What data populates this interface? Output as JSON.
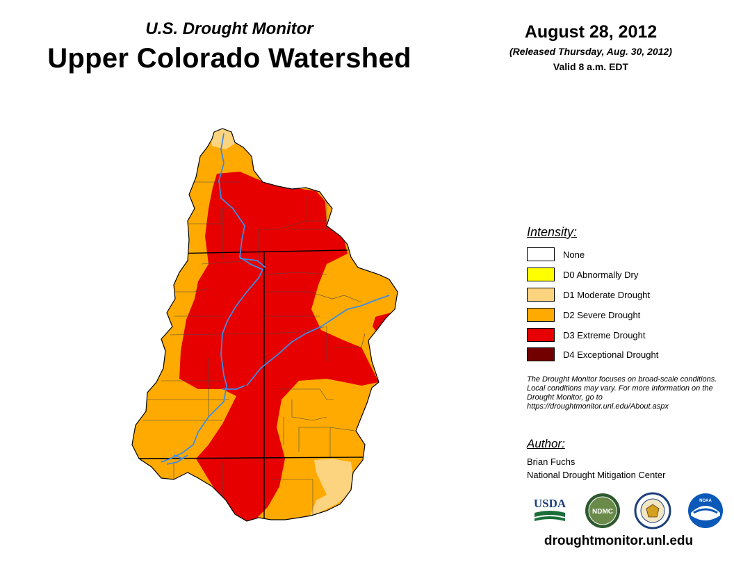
{
  "header": {
    "subtitle": "U.S. Drought Monitor",
    "title": "Upper Colorado Watershed",
    "date": "August 28, 2012",
    "released": "(Released Thursday, Aug. 30, 2012)",
    "valid": "Valid 8 a.m. EDT"
  },
  "legend": {
    "title": "Intensity:",
    "items": [
      {
        "label": "None",
        "color": "#ffffff"
      },
      {
        "label": "D0 Abnormally Dry",
        "color": "#ffff00"
      },
      {
        "label": "D1 Moderate Drought",
        "color": "#fcd37f"
      },
      {
        "label": "D2 Severe Drought",
        "color": "#ffaa00"
      },
      {
        "label": "D3 Extreme Drought",
        "color": "#e60000"
      },
      {
        "label": "D4 Exceptional Drought",
        "color": "#730000"
      }
    ]
  },
  "note": "The Drought Monitor focuses on broad-scale conditions. Local conditions may vary. For more information on the Drought Monitor, go to https://droughtmonitor.unl.edu/About.aspx",
  "author": {
    "title": "Author:",
    "name": "Brian Fuchs",
    "org": "National Drought Mitigation Center"
  },
  "logos": [
    {
      "name": "usda-logo",
      "text": "USDA"
    },
    {
      "name": "ndmc-logo",
      "text": "NDMC"
    },
    {
      "name": "doc-seal-logo",
      "text": ""
    },
    {
      "name": "noaa-logo",
      "text": "NOAA"
    }
  ],
  "footer": {
    "url": "droughtmonitor.unl.edu"
  },
  "colors": {
    "river": "#3c8ce6",
    "boundary": "#000000"
  }
}
